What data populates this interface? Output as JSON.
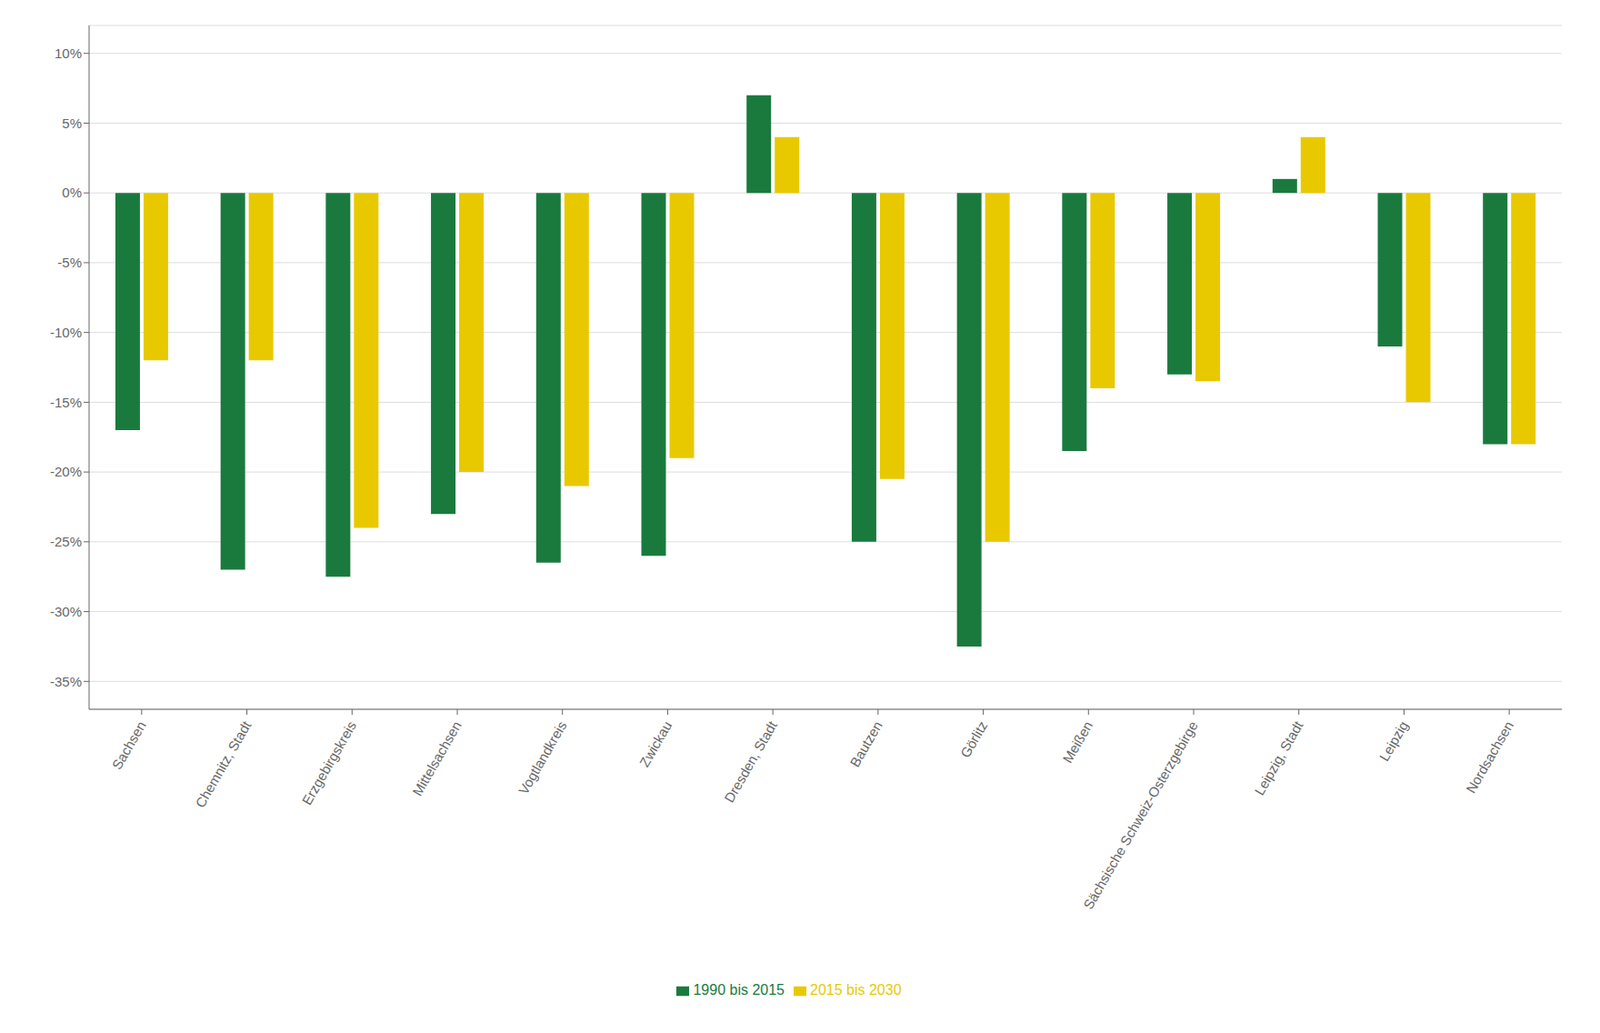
{
  "chart_data": {
    "type": "bar",
    "categories": [
      "Sachsen",
      "Chemnitz, Stadt",
      "Erzgebirgskreis",
      "Mittelsachsen",
      "Vogtlandkreis",
      "Zwickau",
      "Dresden, Stadt",
      "Bautzen",
      "Görlitz",
      "Meißen",
      "Sächsische Schweiz-Osterzgebirge",
      "Leipzig, Stadt",
      "Leipzig",
      "Nordsachsen"
    ],
    "series": [
      {
        "name": "1990 bis 2015",
        "color": "#1a7a3e",
        "values": [
          -17.0,
          -27.0,
          -27.5,
          -23.0,
          -26.5,
          -26.0,
          7.0,
          -25.0,
          -32.5,
          -18.5,
          -13.0,
          1.0,
          -11.0,
          -18.0
        ]
      },
      {
        "name": "2015 bis 2030",
        "color": "#e8c900",
        "values": [
          -12.0,
          -12.0,
          -24.0,
          -20.0,
          -21.0,
          -19.0,
          4.0,
          -20.5,
          -25.0,
          -14.0,
          -13.5,
          4.0,
          -15.0,
          -18.0
        ]
      }
    ],
    "ylim": [
      -37,
      12
    ],
    "yticks": [
      {
        "value": 10,
        "label": "10%"
      },
      {
        "value": 5,
        "label": "5%"
      },
      {
        "value": 0,
        "label": "0%"
      },
      {
        "value": -5,
        "label": "-5%"
      },
      {
        "value": -10,
        "label": "-10%"
      },
      {
        "value": -15,
        "label": "-15%"
      },
      {
        "value": -20,
        "label": "-20%"
      },
      {
        "value": -25,
        "label": "-25%"
      },
      {
        "value": -30,
        "label": "-30%"
      },
      {
        "value": -35,
        "label": "-35%"
      }
    ],
    "grid": true,
    "legend": "bottom"
  }
}
